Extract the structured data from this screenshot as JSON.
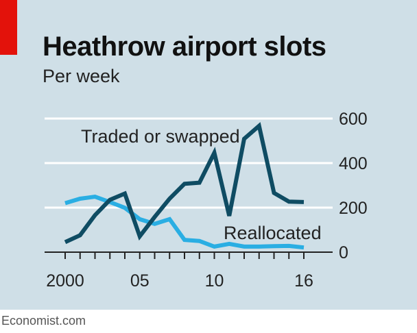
{
  "title": "Heathrow airport slots",
  "subtitle": "Per week",
  "source": "Economist.com",
  "chart_data": {
    "type": "line",
    "x": [
      2000,
      2001,
      2002,
      2003,
      2004,
      2005,
      2006,
      2007,
      2008,
      2009,
      2010,
      2011,
      2012,
      2013,
      2014,
      2015,
      2016
    ],
    "x_tick_labels": [
      {
        "value": 2000,
        "label": "2000"
      },
      {
        "value": 2005,
        "label": "05"
      },
      {
        "value": 2010,
        "label": "10"
      },
      {
        "value": 2016,
        "label": "16"
      }
    ],
    "y_ticks": [
      0,
      200,
      400,
      600
    ],
    "ylim": [
      0,
      600
    ],
    "y_axis_side": "right",
    "grid": true,
    "series": [
      {
        "name": "Traded or swapped",
        "color": "#0f4c63",
        "values": [
          45,
          76,
          166,
          235,
          263,
          71,
          158,
          240,
          307,
          312,
          446,
          163,
          509,
          567,
          266,
          227,
          225
        ]
      },
      {
        "name": "Reallocated",
        "color": "#2aaee3",
        "values": [
          220,
          240,
          249,
          225,
          199,
          148,
          127,
          148,
          55,
          50,
          25,
          37,
          25,
          25,
          27,
          28,
          21
        ]
      }
    ]
  },
  "colors": {
    "background": "#cfdfe7",
    "red_tag": "#e3120b"
  }
}
